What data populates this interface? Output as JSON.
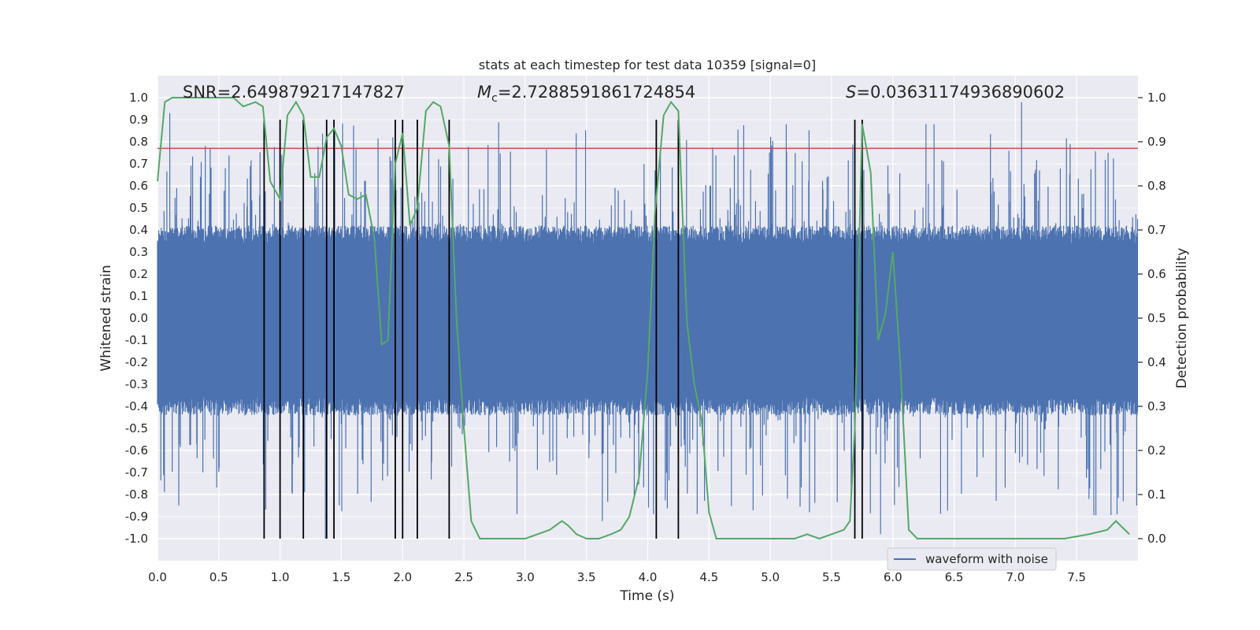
{
  "chart_data": {
    "type": "line",
    "title": "stats at each timestep for test data 10359 [signal=0]",
    "xlabel": "Time (s)",
    "ylabel_left": "Whitened strain",
    "ylabel_right": "Detection probability",
    "xlim": [
      0.0,
      8.0
    ],
    "ylim_left": [
      -1.1,
      1.1
    ],
    "ylim_right": [
      -0.05,
      1.05
    ],
    "x_ticks": [
      "0.0",
      "0.5",
      "1.0",
      "1.5",
      "2.0",
      "2.5",
      "3.0",
      "3.5",
      "4.0",
      "4.5",
      "5.0",
      "5.5",
      "6.0",
      "6.5",
      "7.0",
      "7.5"
    ],
    "y_ticks_left": [
      "1.0",
      "0.9",
      "0.8",
      "0.7",
      "0.6",
      "0.5",
      "0.4",
      "0.3",
      "0.2",
      "0.1",
      "0.0",
      "-0.1",
      "-0.2",
      "-0.3",
      "-0.4",
      "-0.5",
      "-0.6",
      "-0.7",
      "-0.8",
      "-0.9",
      "-1.0"
    ],
    "y_ticks_right": [
      "1.0",
      "0.9",
      "0.8",
      "0.7",
      "0.6",
      "0.5",
      "0.4",
      "0.3",
      "0.2",
      "0.1",
      "0.0"
    ],
    "grid": true,
    "legend_position": "lower-right",
    "annotations": {
      "snr": "SNR=2.649879217147827",
      "mc_symbol": "M",
      "mc_sub": "c",
      "mc_value": "=2.7288591861724854",
      "s_symbol": "S",
      "s_value": "=0.03631174936890602"
    },
    "threshold": {
      "y": 0.77,
      "color": "#c44e52"
    },
    "vlines_x": [
      0.87,
      1.0,
      1.19,
      1.38,
      1.44,
      1.94,
      2.0,
      2.12,
      2.38,
      4.07,
      4.25,
      5.69,
      5.75
    ],
    "vlines_ymax": 0.95,
    "series": [
      {
        "name": "waveform with noise",
        "axis": "left",
        "color": "#4c72b0",
        "envelope": {
          "dense_pos": 0.4,
          "dense_neg": -0.42,
          "peak_pos": 0.98,
          "peak_neg": -1.0,
          "notable_peaks": [
            {
              "x": 0.1,
              "y": 0.93
            },
            {
              "x": 1.37,
              "y": -1.0
            },
            {
              "x": 1.92,
              "y": 0.82
            },
            {
              "x": 3.63,
              "y": -0.92
            },
            {
              "x": 5.9,
              "y": -0.98
            },
            {
              "x": 7.05,
              "y": 0.98
            },
            {
              "x": 7.6,
              "y": -0.82
            },
            {
              "x": 7.99,
              "y": -0.85
            }
          ]
        }
      },
      {
        "name": "",
        "axis": "right",
        "color": "#55a868",
        "x": [
          0.0,
          0.06,
          0.12,
          0.25,
          0.45,
          0.62,
          0.7,
          0.8,
          0.86,
          0.92,
          1.0,
          1.06,
          1.13,
          1.19,
          1.25,
          1.32,
          1.38,
          1.44,
          1.5,
          1.56,
          1.63,
          1.7,
          1.77,
          1.83,
          1.88,
          1.94,
          2.0,
          2.06,
          2.12,
          2.19,
          2.25,
          2.31,
          2.38,
          2.44,
          2.5,
          2.56,
          2.63,
          2.75,
          2.9,
          3.0,
          3.1,
          3.2,
          3.25,
          3.3,
          3.35,
          3.42,
          3.5,
          3.6,
          3.7,
          3.78,
          3.85,
          3.93,
          4.0,
          4.06,
          4.13,
          4.19,
          4.25,
          4.32,
          4.38,
          4.44,
          4.5,
          4.56,
          4.7,
          5.0,
          5.2,
          5.3,
          5.4,
          5.5,
          5.6,
          5.65,
          5.69,
          5.75,
          5.82,
          5.88,
          5.94,
          6.0,
          6.06,
          6.13,
          6.2,
          6.4,
          6.6,
          6.8,
          7.0,
          7.4,
          7.6,
          7.75,
          7.82,
          7.93
        ],
        "y": [
          0.81,
          0.99,
          1.0,
          1.0,
          1.0,
          1.0,
          0.98,
          0.99,
          0.98,
          0.81,
          0.77,
          0.96,
          0.99,
          0.96,
          0.82,
          0.82,
          0.91,
          0.93,
          0.89,
          0.78,
          0.77,
          0.78,
          0.68,
          0.44,
          0.45,
          0.85,
          0.92,
          0.71,
          0.75,
          0.97,
          0.99,
          0.98,
          0.89,
          0.5,
          0.25,
          0.04,
          0.0,
          0.0,
          0.0,
          0.0,
          0.01,
          0.02,
          0.03,
          0.04,
          0.03,
          0.01,
          0.0,
          0.0,
          0.01,
          0.02,
          0.05,
          0.14,
          0.38,
          0.74,
          0.96,
          0.99,
          0.97,
          0.49,
          0.35,
          0.27,
          0.06,
          0.0,
          0.0,
          0.0,
          0.0,
          0.01,
          0.0,
          0.01,
          0.02,
          0.04,
          0.25,
          0.94,
          0.83,
          0.45,
          0.51,
          0.65,
          0.4,
          0.02,
          0.0,
          0.0,
          0.0,
          0.0,
          0.0,
          0.0,
          0.01,
          0.02,
          0.04,
          0.01
        ]
      }
    ]
  }
}
